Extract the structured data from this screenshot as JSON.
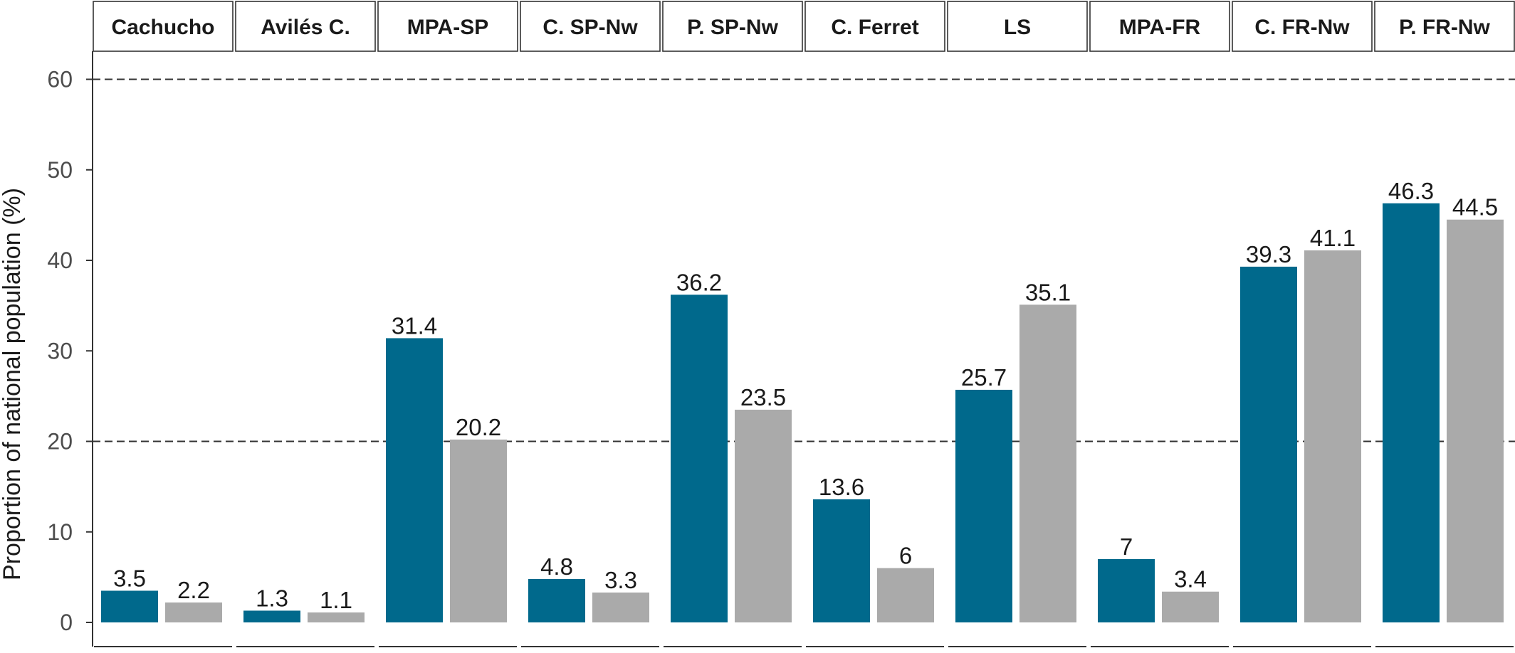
{
  "chart_data": {
    "type": "bar",
    "ylabel": "Proportion of national population (%)",
    "xlabel": "",
    "ylim": [
      0,
      62
    ],
    "yticks": [
      0,
      10,
      20,
      30,
      40,
      50,
      60
    ],
    "reference_lines": [
      20,
      60
    ],
    "panels": [
      {
        "label": "Cachucho",
        "values": [
          3.5,
          2.2
        ],
        "value_labels": [
          "3.5",
          "2.2"
        ]
      },
      {
        "label": "Avilés C.",
        "values": [
          1.3,
          1.1
        ],
        "value_labels": [
          "1.3",
          "1.1"
        ]
      },
      {
        "label": "MPA-SP",
        "values": [
          31.4,
          20.2
        ],
        "value_labels": [
          "31.4",
          "20.2"
        ]
      },
      {
        "label": "C. SP-Nw",
        "values": [
          4.8,
          3.3
        ],
        "value_labels": [
          "4.8",
          "3.3"
        ]
      },
      {
        "label": "P. SP-Nw",
        "values": [
          36.2,
          23.5
        ],
        "value_labels": [
          "36.2",
          "23.5"
        ]
      },
      {
        "label": "C. Ferret",
        "values": [
          13.6,
          6
        ],
        "value_labels": [
          "13.6",
          "6"
        ]
      },
      {
        "label": "LS",
        "values": [
          25.7,
          35.1
        ],
        "value_labels": [
          "25.7",
          "35.1"
        ]
      },
      {
        "label": "MPA-FR",
        "values": [
          7,
          3.4
        ],
        "value_labels": [
          "7",
          "3.4"
        ]
      },
      {
        "label": "C. FR-Nw",
        "values": [
          39.3,
          41.1
        ],
        "value_labels": [
          "39.3",
          "41.1"
        ]
      },
      {
        "label": "P. FR-Nw",
        "values": [
          46.3,
          44.5
        ],
        "value_labels": [
          "46.3",
          "44.5"
        ]
      }
    ],
    "series_colors": [
      "#00698c",
      "#aaaaaa"
    ],
    "grid": false,
    "legend": "none"
  }
}
